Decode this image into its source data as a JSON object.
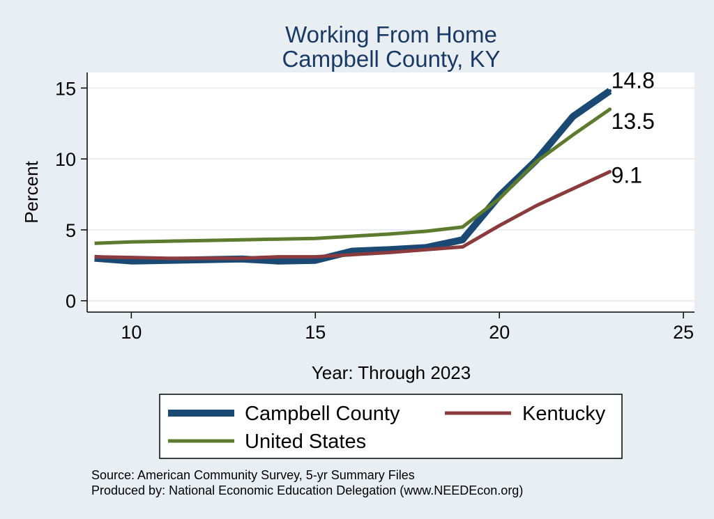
{
  "chart_data": {
    "type": "line",
    "title": [
      "Working From Home",
      "Campbell County, KY"
    ],
    "xlabel": "Year: Through 2023",
    "ylabel": "Percent",
    "xlim": [
      8.8,
      25.3
    ],
    "ylim": [
      -0.8,
      16.1
    ],
    "xticks": [
      10,
      15,
      20,
      25
    ],
    "yticks": [
      0,
      5,
      10,
      15
    ],
    "grid": "horizontal",
    "legend_position": "bottom",
    "series": [
      {
        "name": "Campbell County",
        "color": "#1a4a74",
        "x": [
          9,
          10,
          11,
          12,
          13,
          14,
          15,
          16,
          17,
          18,
          19,
          20,
          21,
          22,
          23
        ],
        "y": [
          3.0,
          2.8,
          2.85,
          2.9,
          2.95,
          2.8,
          2.85,
          3.5,
          3.6,
          3.75,
          4.3,
          7.4,
          9.9,
          13.0,
          14.8
        ],
        "end_label": "14.8"
      },
      {
        "name": "Kentucky",
        "color": "#8b3a3e",
        "x": [
          9,
          10,
          11,
          12,
          13,
          14,
          15,
          16,
          17,
          18,
          19,
          20,
          21,
          22,
          23
        ],
        "y": [
          3.1,
          3.05,
          3.0,
          3.0,
          3.0,
          3.1,
          3.1,
          3.25,
          3.4,
          3.6,
          3.8,
          5.3,
          6.7,
          7.9,
          9.1
        ],
        "end_label": "9.1"
      },
      {
        "name": "United States",
        "color": "#5d7b2e",
        "x": [
          9,
          10,
          11,
          12,
          13,
          14,
          15,
          16,
          17,
          18,
          19,
          20,
          21,
          22,
          23
        ],
        "y": [
          4.05,
          4.15,
          4.2,
          4.25,
          4.3,
          4.35,
          4.4,
          4.55,
          4.7,
          4.9,
          5.2,
          7.2,
          9.8,
          11.7,
          13.5
        ],
        "end_label": "13.5"
      }
    ]
  },
  "notes": [
    "Source: American Community Survey, 5-yr Summary Files",
    "Produced by: National Economic Education Delegation (www.NEEDEcon.org)"
  ]
}
